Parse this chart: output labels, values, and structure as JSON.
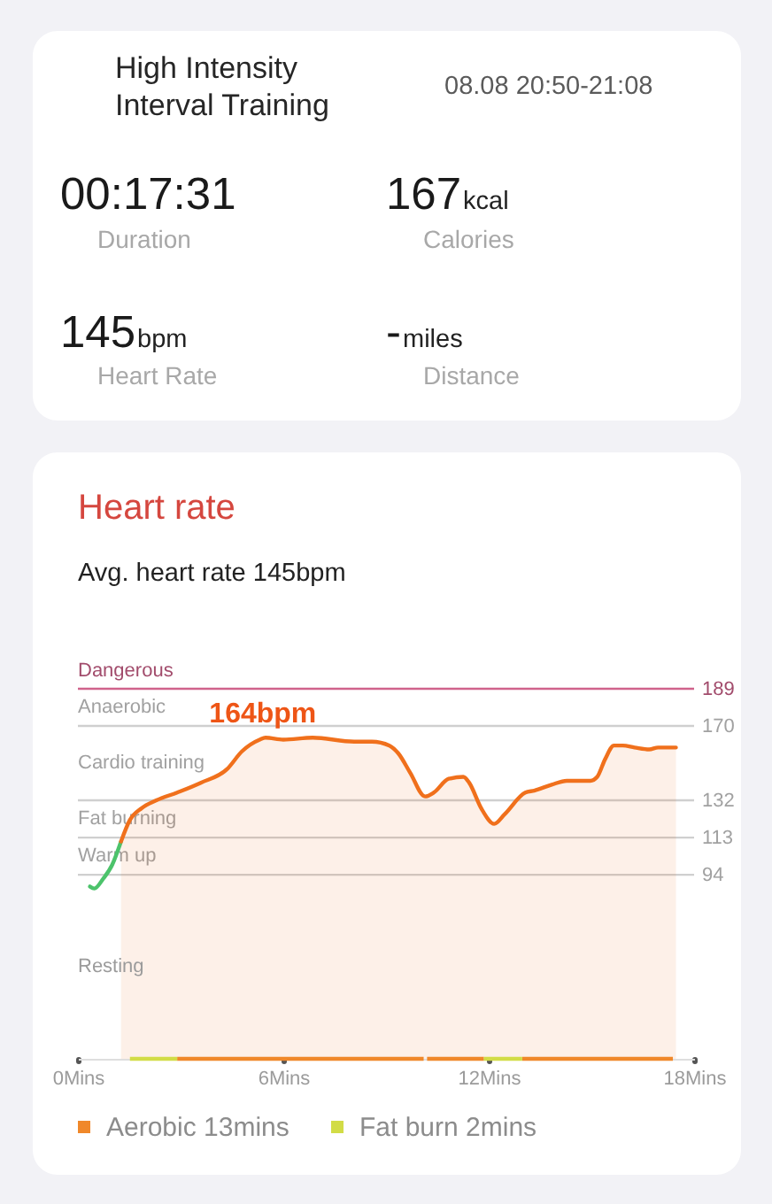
{
  "chart_data": [
    {
      "type": "other",
      "title": "High Intensity Interval Training",
      "annotations": [
        "08.08 20:50-21:08",
        "00:17:31",
        "Duration",
        "167",
        "kcal",
        "Calories",
        "145",
        "bpm",
        "Heart Rate",
        "-",
        "miles",
        "Distance"
      ]
    },
    {
      "type": "line",
      "title": "Heart rate",
      "subtitle": "Avg. heart rate 145bpm",
      "xlim": [
        0,
        18
      ],
      "xticks": [
        {
          "value": 0,
          "label": "0Mins"
        },
        {
          "value": 6,
          "label": "6Mins"
        },
        {
          "value": 12,
          "label": "12Mins"
        },
        {
          "value": 18,
          "label": "18Mins"
        }
      ],
      "ylim": [
        0,
        189
      ],
      "yticks": [
        94,
        113,
        132,
        170,
        189
      ],
      "ref_lines": [
        {
          "axis": "y",
          "value": 189,
          "label": "Dangerous",
          "color": "#d0628b"
        },
        {
          "axis": "y",
          "value": 170,
          "label": "Anaerobic",
          "color": "#cfcfcf"
        },
        {
          "axis": "y",
          "value": 132,
          "label": "Cardio training",
          "color": "#cfcfcf"
        },
        {
          "axis": "y",
          "value": 113,
          "label": "Fat burning",
          "color": "#cfcfcf"
        },
        {
          "axis": "y",
          "value": 94,
          "label": "Warm up",
          "color": "#cfcfcf"
        }
      ],
      "annotations": [
        {
          "text": "164bpm",
          "x": 5.4,
          "y": 164
        },
        "Resting"
      ],
      "legend": "bottom",
      "series": [
        {
          "type": "line",
          "color": "#4cc36b",
          "x": [
            0.35,
            0.48,
            0.74,
            1.0,
            1.26
          ],
          "values": [
            88,
            87,
            92,
            99,
            111
          ]
        },
        {
          "type": "area",
          "color": "#f0701c",
          "x": [
            1.26,
            1.52,
            1.86,
            2.29,
            2.9,
            3.59,
            4.36,
            4.79,
            5.31,
            5.48,
            6.0,
            6.86,
            8.07,
            8.59,
            9.1,
            9.36,
            9.71,
            10.14,
            10.4,
            10.83,
            11.26,
            11.43,
            11.78,
            12.16,
            12.47,
            13.07,
            13.33,
            13.84,
            14.28,
            14.97,
            15.17,
            15.4,
            15.66,
            15.92,
            16.26,
            16.69,
            16.95,
            17.47
          ],
          "values": [
            111,
            122,
            128,
            132,
            136,
            141,
            148,
            157,
            163,
            164,
            163,
            164,
            162,
            162,
            160,
            156,
            146,
            134,
            136,
            143,
            144,
            141,
            128,
            120,
            125,
            136,
            137,
            140,
            142,
            142,
            144,
            153,
            160,
            160,
            159,
            158,
            159,
            159
          ]
        },
        {
          "type": "line",
          "name": "Aerobic 13mins",
          "color": "#f0882a",
          "x": [
            2.9,
            10.1,
            10.15,
            10.2,
            11.86,
            12.4,
            12.98,
            17.38
          ],
          "values": [
            0,
            0,
            null,
            0,
            0,
            null,
            0,
            0
          ]
        },
        {
          "type": "line",
          "name": "Fat burn 2mins",
          "color": "#d2dc46",
          "x": [
            1.52,
            2.9,
            7.0,
            11.86,
            12.98
          ],
          "values": [
            0,
            0,
            null,
            0,
            0
          ]
        }
      ]
    }
  ]
}
